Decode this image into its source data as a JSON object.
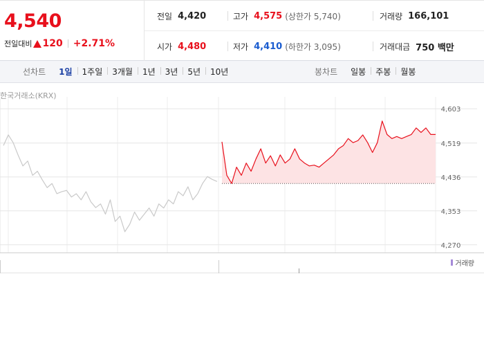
{
  "header": {
    "price": "4,540",
    "change_label": "전일대비",
    "change": "120",
    "change_pct": "+2.71%",
    "stats": [
      {
        "label": "전일",
        "value": "4,420"
      },
      {
        "label": "고가",
        "value": "4,575",
        "note": "(상한가 5,740)"
      },
      {
        "label": "거래량",
        "value": "166,101"
      },
      {
        "label": "시가",
        "value": "4,480"
      },
      {
        "label": "저가",
        "value": "4,410",
        "note": "(하한가 3,095)"
      },
      {
        "label": "거래대금",
        "value": "750 백만"
      }
    ]
  },
  "tabs": {
    "line_label": "선차트",
    "periods": [
      "1일",
      "1주일",
      "3개월",
      "1년",
      "3년",
      "5년",
      "10년"
    ],
    "candle_label": "봉차트",
    "candles": [
      "일봉",
      "주봉",
      "월봉"
    ]
  },
  "chart_data": {
    "type": "line",
    "source": "한국거래소(KRX)",
    "volume_label": "거래량",
    "ylim": [
      4251,
      4666
    ],
    "yticks": [
      {
        "value": 4603,
        "label": "4,603"
      },
      {
        "value": 4519,
        "label": "4,519"
      },
      {
        "value": 4436,
        "label": "4,436"
      },
      {
        "value": 4353,
        "label": "4,353"
      },
      {
        "value": 4270,
        "label": "4,270"
      }
    ],
    "grid": true,
    "reference": 4420,
    "reference_color": "#555555",
    "area_color": "#fde3e4",
    "series": [
      {
        "color": "#c9c9c9",
        "values": [
          4513,
          4539,
          4520,
          4490,
          4463,
          4475,
          4440,
          4450,
          4429,
          4410,
          4420,
          4395,
          4400,
          4403,
          4387,
          4395,
          4380,
          4400,
          4375,
          4361,
          4370,
          4345,
          4380,
          4327,
          4340,
          4302,
          4320,
          4350,
          4330,
          4345,
          4360,
          4340,
          4370,
          4360,
          4380,
          4370,
          4400,
          4390,
          4412,
          4380,
          4395,
          4420,
          4437,
          4430,
          4425,
          null,
          null,
          null,
          null,
          null,
          null,
          null,
          null,
          null,
          null,
          null,
          null,
          null,
          null,
          null,
          null,
          null,
          null,
          null,
          null,
          null,
          null,
          null,
          null,
          null,
          null,
          null,
          null,
          null,
          null,
          null,
          null,
          null,
          null,
          null,
          null,
          null,
          null,
          null,
          null,
          null,
          null,
          null,
          null,
          null
        ]
      },
      {
        "color": "#e8101c",
        "values": [
          null,
          null,
          null,
          null,
          null,
          null,
          null,
          null,
          null,
          null,
          null,
          null,
          null,
          null,
          null,
          null,
          null,
          null,
          null,
          null,
          null,
          null,
          null,
          null,
          null,
          null,
          null,
          null,
          null,
          null,
          null,
          null,
          null,
          null,
          null,
          null,
          null,
          null,
          null,
          null,
          null,
          null,
          null,
          null,
          null,
          4522,
          4440,
          4420,
          4460,
          4440,
          4470,
          4450,
          4480,
          4505,
          4470,
          4488,
          4463,
          4490,
          4470,
          4480,
          4505,
          4480,
          4470,
          4463,
          4465,
          4460,
          4470,
          4480,
          4490,
          4505,
          4513,
          4530,
          4520,
          4525,
          4539,
          4520,
          4496,
          4520,
          4573,
          4540,
          4530,
          4535,
          4530,
          4535,
          4540,
          4556,
          4545,
          4556,
          4540,
          4540
        ]
      }
    ]
  }
}
